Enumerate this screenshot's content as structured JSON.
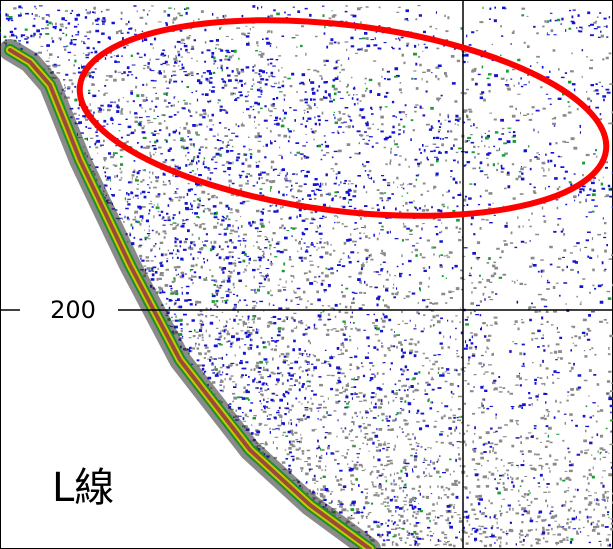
{
  "depth_tick": "200",
  "transect_label": "L線"
}
